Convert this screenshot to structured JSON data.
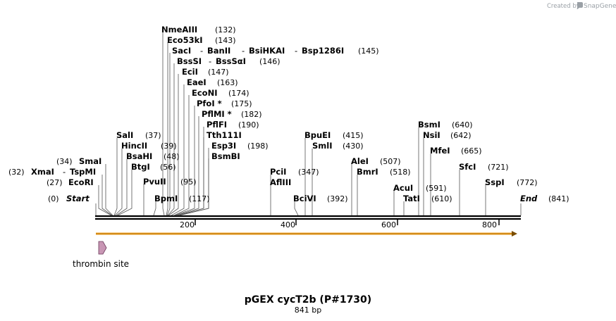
{
  "header": {
    "credit_text": "Created by",
    "brand_name": "SnapGene"
  },
  "map": {
    "name": "pGEX cycT2b (P#1730)",
    "length_label": "841 bp",
    "start_label": "Start",
    "start_pos": "(0)",
    "end_label": "End",
    "end_pos": "(841)",
    "ticks": [
      "200",
      "400",
      "600",
      "800"
    ],
    "feature_label": "thrombin site",
    "colors": {
      "backbone": "#000000",
      "orf_arrow": "#f0a020",
      "thrombin_site": "#c896b4"
    }
  },
  "enzymes": [
    {
      "label": "NmeAIII",
      "pos": "(132)"
    },
    {
      "label": "Eco53kI",
      "pos": "(143)"
    },
    {
      "label": "SacI",
      "label2": "BanII",
      "label3": "BsiHKAI",
      "label4": "Bsp1286I",
      "pos": "(145)"
    },
    {
      "label": "BssSI",
      "label2": "BssSαI",
      "pos": "(146)"
    },
    {
      "label": "EciI",
      "pos": "(147)"
    },
    {
      "label": "EaeI",
      "pos": "(163)"
    },
    {
      "label": "EcoNI",
      "pos": "(174)"
    },
    {
      "label": "PfoI *",
      "pos": "(175)"
    },
    {
      "label": "PflMI *",
      "pos": "(182)"
    },
    {
      "label": "PflFI",
      "pos": "(190)"
    },
    {
      "label": "Tth111I",
      "pos": ""
    },
    {
      "label": "Esp3I",
      "pos": "(198)"
    },
    {
      "label": "BsmBI",
      "pos": ""
    },
    {
      "label": "SalI",
      "pos": "(37)"
    },
    {
      "label": "HincII",
      "pos": "(39)"
    },
    {
      "label": "BsaHI",
      "pos": "(48)"
    },
    {
      "label": "BtgI",
      "pos": "(56)"
    },
    {
      "label": "PvuII",
      "pos": "(95)"
    },
    {
      "label": "BpmI",
      "pos": "(117)"
    },
    {
      "label": "SmaI",
      "pos": "(34)"
    },
    {
      "label": "XmaI",
      "label2": "TspMI",
      "pos": "(32)"
    },
    {
      "label": "EcoRI",
      "pos": "(27)"
    },
    {
      "label": "PciI",
      "pos": "(347)"
    },
    {
      "label": "AflIII",
      "pos": ""
    },
    {
      "label": "BpuEI",
      "pos": "(415)"
    },
    {
      "label": "SmlI",
      "pos": "(430)"
    },
    {
      "label": "BciVI",
      "pos": "(392)"
    },
    {
      "label": "AleI",
      "pos": "(507)"
    },
    {
      "label": "BmrI",
      "pos": "(518)"
    },
    {
      "label": "BsmI",
      "pos": "(640)"
    },
    {
      "label": "NsiI",
      "pos": "(642)"
    },
    {
      "label": "MfeI",
      "pos": "(665)"
    },
    {
      "label": "AcuI",
      "pos": "(591)"
    },
    {
      "label": "TatI",
      "pos": "(610)"
    },
    {
      "label": "SfcI",
      "pos": "(721)"
    },
    {
      "label": "SspI",
      "pos": "(772)"
    }
  ]
}
